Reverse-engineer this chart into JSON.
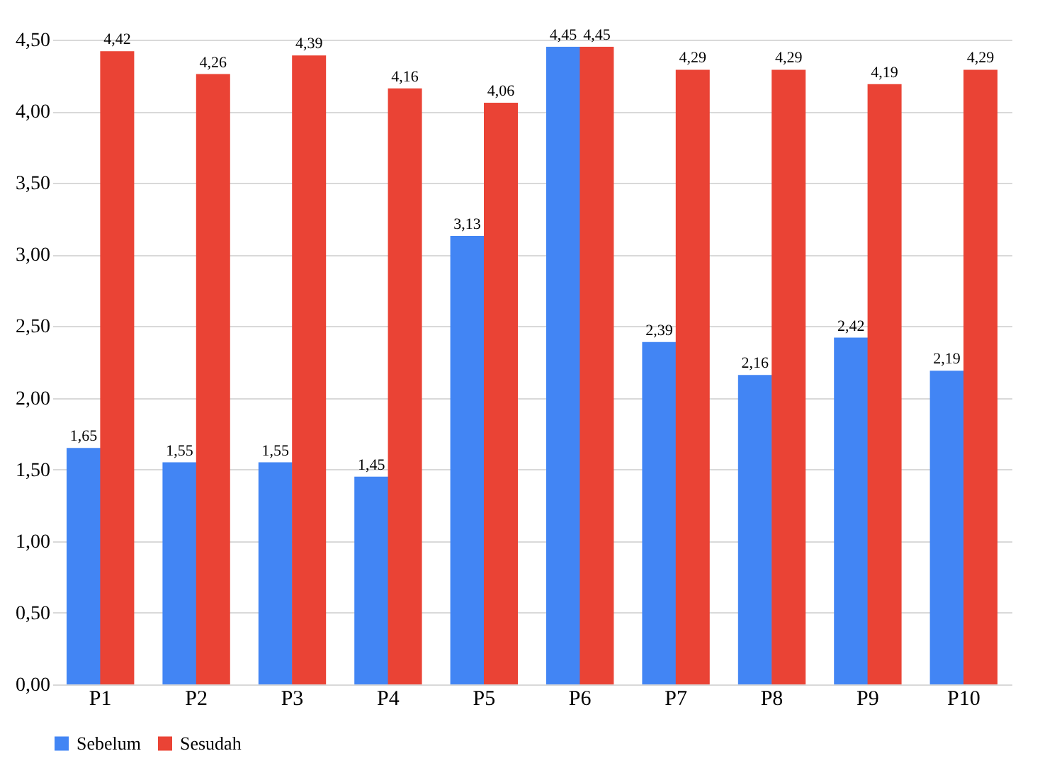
{
  "chart_data": {
    "type": "bar",
    "categories": [
      "P1",
      "P2",
      "P3",
      "P4",
      "P5",
      "P6",
      "P7",
      "P8",
      "P9",
      "P10"
    ],
    "series": [
      {
        "name": "Sebelum",
        "color": "#4285f4",
        "values": [
          1.65,
          1.55,
          1.55,
          1.45,
          3.13,
          4.45,
          2.39,
          2.16,
          2.42,
          2.19
        ],
        "value_labels": [
          "1,65",
          "1,55",
          "1,55",
          "1,45",
          "3,13",
          "4,45",
          "2,39",
          "2,16",
          "2,42",
          "2,19"
        ]
      },
      {
        "name": "Sesudah",
        "color": "#ea4335",
        "values": [
          4.42,
          4.26,
          4.39,
          4.16,
          4.06,
          4.45,
          4.29,
          4.29,
          4.19,
          4.29
        ],
        "value_labels": [
          "4,42",
          "4,26",
          "4,39",
          "4,16",
          "4,06",
          "4,45",
          "4,29",
          "4,29",
          "4,19",
          "4,29"
        ]
      }
    ],
    "ylim": [
      0,
      4.5
    ],
    "yticks": [
      {
        "value": 0,
        "label": "0,00"
      },
      {
        "value": 0.5,
        "label": "0,50"
      },
      {
        "value": 1,
        "label": "1,00"
      },
      {
        "value": 1.5,
        "label": "1,50"
      },
      {
        "value": 2,
        "label": "2,00"
      },
      {
        "value": 2.5,
        "label": "2,50"
      },
      {
        "value": 3,
        "label": "3,00"
      },
      {
        "value": 3.5,
        "label": "3,50"
      },
      {
        "value": 4,
        "label": "4,00"
      },
      {
        "value": 4.5,
        "label": "4,50"
      }
    ],
    "grid": "y",
    "legend": "bottom"
  }
}
